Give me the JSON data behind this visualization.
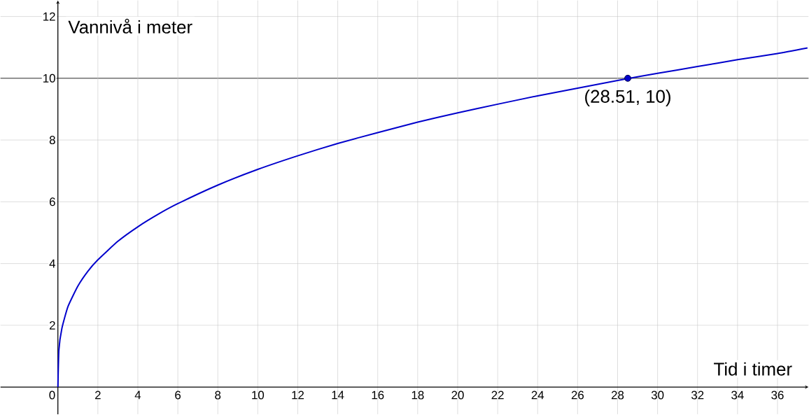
{
  "chart_data": {
    "type": "line",
    "xlabel": "Tid i timer",
    "ylabel": "Vannivå i meter",
    "series": [
      {
        "color": "#0000cc",
        "marker": "none",
        "x": [
          0,
          0.05,
          0.2,
          0.5,
          1,
          1.5,
          2,
          3,
          4,
          5,
          6,
          8,
          10,
          12,
          14,
          16,
          18,
          20,
          22,
          24,
          26,
          28,
          30,
          32,
          34,
          36,
          37.5
        ],
        "values": [
          0,
          1.2,
          1.9,
          2.6,
          3.27,
          3.75,
          4.12,
          4.72,
          5.19,
          5.59,
          5.94,
          6.54,
          7.05,
          7.49,
          7.89,
          8.24,
          8.58,
          8.88,
          9.16,
          9.43,
          9.68,
          9.93,
          10.16,
          10.38,
          10.6,
          10.8,
          10.98
        ]
      },
      {
        "type": "scatter",
        "color": "#0000cc",
        "marker": "circle",
        "x": [
          28.51
        ],
        "values": [
          10
        ]
      }
    ],
    "ref_lines": [
      {
        "axis": "y",
        "value": 10,
        "color": "#333333"
      }
    ],
    "annotations": [
      {
        "text": "(28.51, 10)",
        "x": 28.51,
        "y": 10
      }
    ],
    "xlim": [
      -2.87,
      37.55
    ],
    "ylim": [
      -0.88,
      12.52
    ],
    "xticks": [
      0,
      2,
      4,
      6,
      8,
      10,
      12,
      14,
      16,
      18,
      20,
      22,
      24,
      26,
      28,
      30,
      32,
      34,
      36
    ],
    "yticks": [
      2,
      4,
      6,
      8,
      10,
      12
    ],
    "grid": true
  }
}
